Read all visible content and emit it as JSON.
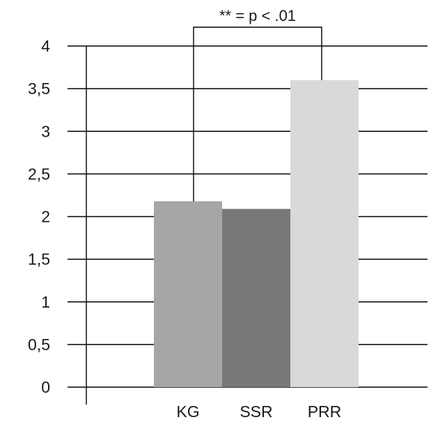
{
  "chart_data": {
    "type": "bar",
    "categories": [
      "KG",
      "SSR",
      "PRR"
    ],
    "values": [
      2.18,
      2.09,
      3.6
    ],
    "colors": [
      "#a6a6a6",
      "#787878",
      "#d9d9d9"
    ],
    "ylim": [
      0,
      4
    ],
    "y_ticks": [
      0,
      0.5,
      1,
      1.5,
      2,
      2.5,
      3,
      3.5,
      4
    ],
    "y_tick_labels": [
      "0",
      "0,5",
      "1",
      "1,5",
      "2",
      "2,5",
      "3",
      "3,5",
      "4"
    ],
    "grid": true,
    "title": "",
    "xlabel": "",
    "ylabel": "",
    "annotation": {
      "text": "** = p < .01",
      "between": [
        "KG",
        "PRR"
      ]
    }
  }
}
